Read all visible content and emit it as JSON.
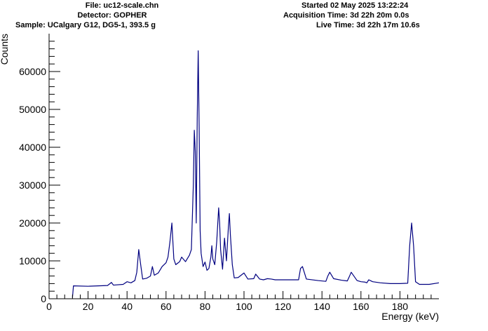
{
  "header": {
    "file": "File: uc12-scale.chn",
    "detector": "Detector: GOPHER",
    "sample": "Sample: UCalgary G12, DG5-1, 393.5 g",
    "started": "Started 02 May 2025 13:22:24",
    "acquisition": "Acquisition Time: 3d 22h 20m 0.0s",
    "live": "Live Time: 3d 22h 17m 10.6s"
  },
  "colors": {
    "series": "#000080",
    "axis": "#000000",
    "background": "#ffffff"
  },
  "chart_data": {
    "type": "line",
    "title": "",
    "xlabel": "Energy (keV)",
    "ylabel": "Counts",
    "xlim": [
      0,
      200
    ],
    "ylim": [
      0,
      70000
    ],
    "grid": false,
    "x_ticks": [
      0,
      20,
      40,
      60,
      80,
      100,
      120,
      140,
      160,
      180
    ],
    "x_tick_labels": [
      "0",
      "20",
      "40",
      "60",
      "80",
      "100",
      "120",
      "140",
      "160",
      "180"
    ],
    "y_ticks": [
      0,
      10000,
      20000,
      30000,
      40000,
      50000,
      60000
    ],
    "y_tick_labels": [
      "0",
      "10000",
      "20000",
      "30000",
      "40000",
      "50000",
      "60000"
    ],
    "series": [
      {
        "x": [
          12,
          12.5,
          20,
          30,
          32,
          33,
          38,
          40,
          42,
          44,
          45,
          46,
          47,
          48,
          50,
          52,
          53,
          54,
          56,
          58,
          60,
          61,
          62,
          63,
          64,
          65,
          67,
          68,
          70,
          72,
          73,
          74,
          74.5,
          75,
          75.5,
          76,
          76.5,
          77,
          77.5,
          78,
          79,
          80,
          81,
          82,
          83,
          83.5,
          84,
          85,
          86,
          87,
          87.5,
          88,
          89,
          89.5,
          90,
          91,
          92,
          92.5,
          93,
          94,
          95,
          97,
          100,
          102,
          105,
          106,
          108,
          110,
          112,
          114,
          116,
          120,
          126,
          128,
          129,
          130,
          132,
          138,
          142,
          143,
          144,
          146,
          150,
          153,
          154,
          155,
          158,
          160,
          162,
          163,
          164,
          166,
          170,
          175,
          180,
          184,
          185,
          186,
          187,
          188,
          190,
          195,
          200
        ],
        "y": [
          300,
          3400,
          3300,
          3500,
          4300,
          3600,
          3800,
          4500,
          4200,
          4800,
          7000,
          13000,
          9000,
          5200,
          5400,
          6000,
          8500,
          6200,
          6800,
          8500,
          9500,
          11000,
          15000,
          20000,
          10500,
          9000,
          9800,
          11000,
          9800,
          11500,
          13000,
          30000,
          44500,
          39000,
          20000,
          47500,
          65500,
          45000,
          18000,
          12000,
          8500,
          9700,
          7500,
          8000,
          11000,
          14000,
          10500,
          9000,
          15000,
          24000,
          20000,
          13000,
          7800,
          12000,
          16000,
          10000,
          19000,
          22500,
          17000,
          9000,
          5500,
          5600,
          6800,
          5200,
          5300,
          6500,
          5200,
          5000,
          5300,
          5200,
          5000,
          5000,
          5000,
          5000,
          8000,
          8500,
          5200,
          4800,
          4600,
          6000,
          7000,
          5300,
          4900,
          4700,
          5800,
          7000,
          4800,
          4500,
          4400,
          4200,
          5000,
          4500,
          4200,
          4000,
          4000,
          4100,
          14000,
          20000,
          14000,
          4500,
          3800,
          3800,
          4200
        ]
      }
    ]
  }
}
